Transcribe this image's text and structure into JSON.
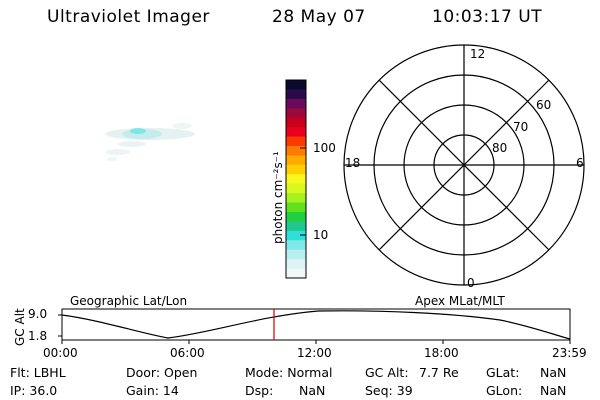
{
  "header": {
    "instrument": "Ultraviolet Imager",
    "date": "28 May 07",
    "time": "10:03:17 UT"
  },
  "colorbar": {
    "unit_label": "photon cm⁻²s⁻¹",
    "tick_100": "100",
    "tick_10": "10",
    "colors": [
      "#0a0a2a",
      "#2a0a4a",
      "#6a0a5a",
      "#9a0a3a",
      "#c8001e",
      "#e8001e",
      "#ff3a00",
      "#ff7a00",
      "#ffaa00",
      "#ffd000",
      "#f8f820",
      "#d8f820",
      "#a8f020",
      "#60e020",
      "#20d040",
      "#20c890",
      "#30e0d8",
      "#80e8e8",
      "#b8f0f0",
      "#dcf4f4",
      "#f0f8f8"
    ]
  },
  "polar": {
    "mlt_12": "12",
    "mlt_18": "18",
    "mlt_6": "6",
    "mlt_0": "0",
    "lat_60": "60",
    "lat_70": "70",
    "lat_80": "80"
  },
  "timeline": {
    "left_label": "Geographic Lat/Lon",
    "right_label": "Apex MLat/MLT",
    "axis_label": "GC Alt",
    "y_top": "9.0",
    "y_bottom": "1.8",
    "ticks": [
      "00:00",
      "06:00",
      "12:00",
      "18:00",
      "23:59"
    ],
    "current_time_marker": "10:03:17"
  },
  "info": {
    "row1": {
      "flt": "Flt: LBHL",
      "door": "Door: Open",
      "mode": "Mode: Normal",
      "gcalt_label": "GC Alt:",
      "gcalt_value": "7.7 Re",
      "glat_label": "GLat:",
      "glat_value": "NaN"
    },
    "row2": {
      "ip": "IP: 36.0",
      "gain": "Gain: 14",
      "dsp_label": "Dsp:",
      "dsp_value": "NaN",
      "seq": "Seq: 39",
      "glon_label": "GLon:",
      "glon_value": "NaN"
    }
  }
}
